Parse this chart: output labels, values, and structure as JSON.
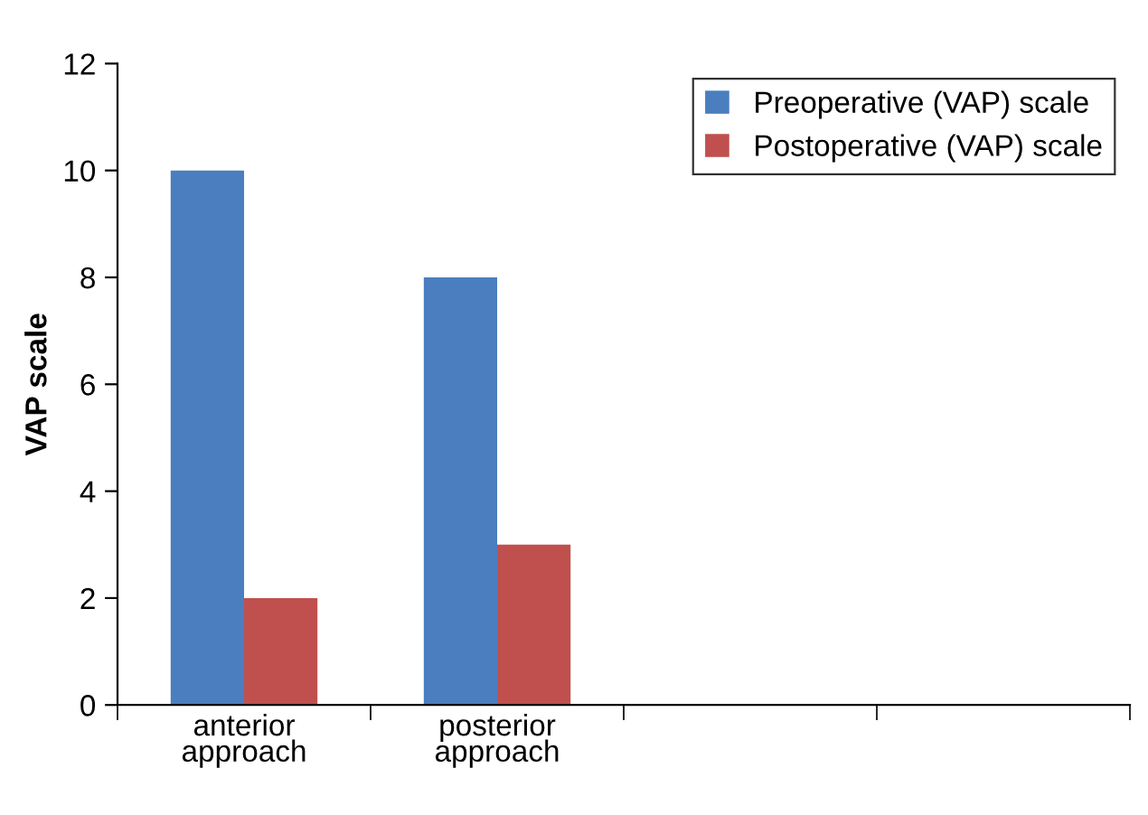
{
  "chart_data": {
    "type": "bar",
    "ylabel": "VAP scale",
    "categories": [
      "anterior\napproach",
      "posterior\napproach",
      null,
      null
    ],
    "series": [
      {
        "name": "Preoperative (VAP) scale",
        "color": "#4a7ebf",
        "values": [
          10,
          8,
          null,
          null
        ]
      },
      {
        "name": "Postoperative (VAP) scale",
        "color": "#c0504d",
        "values": [
          2,
          3,
          null,
          null
        ]
      }
    ],
    "ylim": [
      0,
      12
    ],
    "yticks": [
      0,
      2,
      4,
      6,
      8,
      10,
      12
    ],
    "grid": false,
    "legend": "top right"
  }
}
